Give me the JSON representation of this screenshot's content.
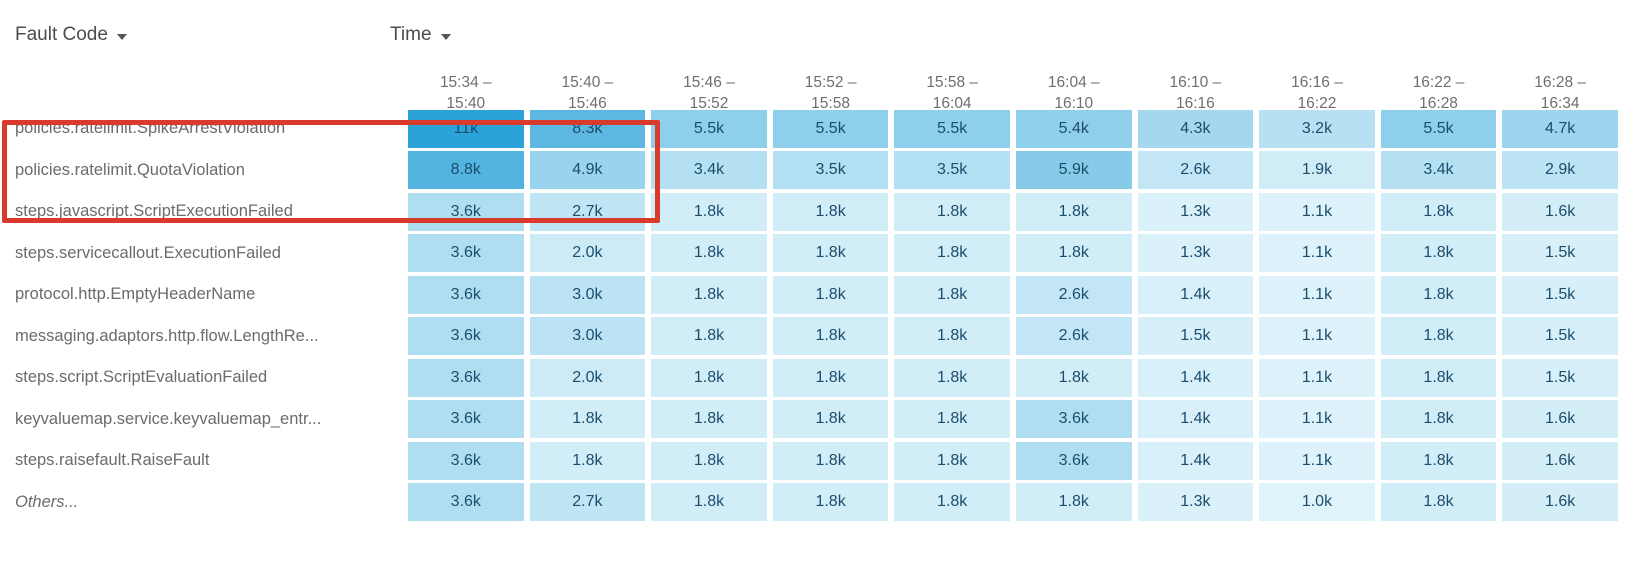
{
  "controls": {
    "row_dimension_label": "Fault Code",
    "column_dimension_label": "Time"
  },
  "heatmap": {
    "columns": [
      {
        "line1": "15:34 –",
        "line2": "15:40"
      },
      {
        "line1": "15:40 –",
        "line2": "15:46"
      },
      {
        "line1": "15:46 –",
        "line2": "15:52"
      },
      {
        "line1": "15:52 –",
        "line2": "15:58"
      },
      {
        "line1": "15:58 –",
        "line2": "16:04"
      },
      {
        "line1": "16:04 –",
        "line2": "16:10"
      },
      {
        "line1": "16:10 –",
        "line2": "16:16"
      },
      {
        "line1": "16:16 –",
        "line2": "16:22"
      },
      {
        "line1": "16:22 –",
        "line2": "16:28"
      },
      {
        "line1": "16:28 –",
        "line2": "16:34"
      }
    ],
    "rows": [
      {
        "label": "policies.ratelimit.SpikeArrestViolation",
        "italic": false,
        "values": [
          "11k",
          "8.3k",
          "5.5k",
          "5.5k",
          "5.5k",
          "5.4k",
          "4.3k",
          "3.2k",
          "5.5k",
          "4.7k"
        ]
      },
      {
        "label": "policies.ratelimit.QuotaViolation",
        "italic": false,
        "values": [
          "8.8k",
          "4.9k",
          "3.4k",
          "3.5k",
          "3.5k",
          "5.9k",
          "2.6k",
          "1.9k",
          "3.4k",
          "2.9k"
        ]
      },
      {
        "label": "steps.javascript.ScriptExecutionFailed",
        "italic": false,
        "values": [
          "3.6k",
          "2.7k",
          "1.8k",
          "1.8k",
          "1.8k",
          "1.8k",
          "1.3k",
          "1.1k",
          "1.8k",
          "1.6k"
        ]
      },
      {
        "label": "steps.servicecallout.ExecutionFailed",
        "italic": false,
        "values": [
          "3.6k",
          "2.0k",
          "1.8k",
          "1.8k",
          "1.8k",
          "1.8k",
          "1.3k",
          "1.1k",
          "1.8k",
          "1.5k"
        ]
      },
      {
        "label": "protocol.http.EmptyHeaderName",
        "italic": false,
        "values": [
          "3.6k",
          "3.0k",
          "1.8k",
          "1.8k",
          "1.8k",
          "2.6k",
          "1.4k",
          "1.1k",
          "1.8k",
          "1.5k"
        ]
      },
      {
        "label": "messaging.adaptors.http.flow.LengthRe...",
        "italic": false,
        "values": [
          "3.6k",
          "3.0k",
          "1.8k",
          "1.8k",
          "1.8k",
          "2.6k",
          "1.5k",
          "1.1k",
          "1.8k",
          "1.5k"
        ]
      },
      {
        "label": "steps.script.ScriptEvaluationFailed",
        "italic": false,
        "values": [
          "3.6k",
          "2.0k",
          "1.8k",
          "1.8k",
          "1.8k",
          "1.8k",
          "1.4k",
          "1.1k",
          "1.8k",
          "1.5k"
        ]
      },
      {
        "label": "keyvaluemap.service.keyvaluemap_entr...",
        "italic": false,
        "values": [
          "3.6k",
          "1.8k",
          "1.8k",
          "1.8k",
          "1.8k",
          "3.6k",
          "1.4k",
          "1.1k",
          "1.8k",
          "1.6k"
        ]
      },
      {
        "label": "steps.raisefault.RaiseFault",
        "italic": false,
        "values": [
          "3.6k",
          "1.8k",
          "1.8k",
          "1.8k",
          "1.8k",
          "3.6k",
          "1.4k",
          "1.1k",
          "1.8k",
          "1.6k"
        ]
      },
      {
        "label": "Others...",
        "italic": true,
        "values": [
          "3.6k",
          "2.7k",
          "1.8k",
          "1.8k",
          "1.8k",
          "1.8k",
          "1.3k",
          "1.0k",
          "1.8k",
          "1.6k"
        ]
      }
    ],
    "color_scale": {
      "min_value": 1000,
      "max_value": 11000,
      "min_color": "#DFF3FA",
      "max_color": "#2BA2D8"
    },
    "cell_text_color": "#1B4D6E"
  },
  "annotation": {
    "highlight_color": "#D93A2B"
  }
}
